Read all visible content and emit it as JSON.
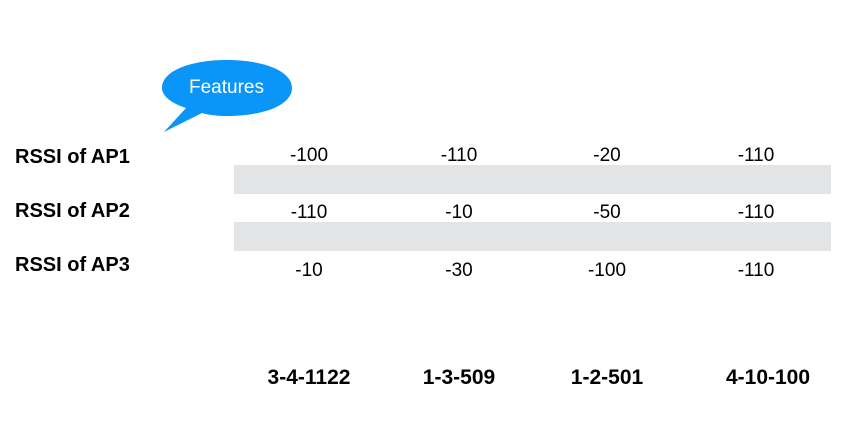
{
  "bubble": {
    "label": "Features",
    "color": "#0a95f8"
  },
  "rows": [
    {
      "label": "RSSI of AP1",
      "values": [
        "-100",
        "-110",
        "-20",
        "-110"
      ]
    },
    {
      "label": "RSSI of AP2",
      "values": [
        "-110",
        "-10",
        "-50",
        "-110"
      ]
    },
    {
      "label": "RSSI of AP3",
      "values": [
        "-10",
        "-30",
        "-100",
        "-110"
      ]
    }
  ],
  "columns": [
    "3-4-1122",
    "1-3-509",
    "1-2-501",
    "4-10-100"
  ],
  "colors": {
    "stripe": "#e3e4e6",
    "text": "#000000"
  }
}
